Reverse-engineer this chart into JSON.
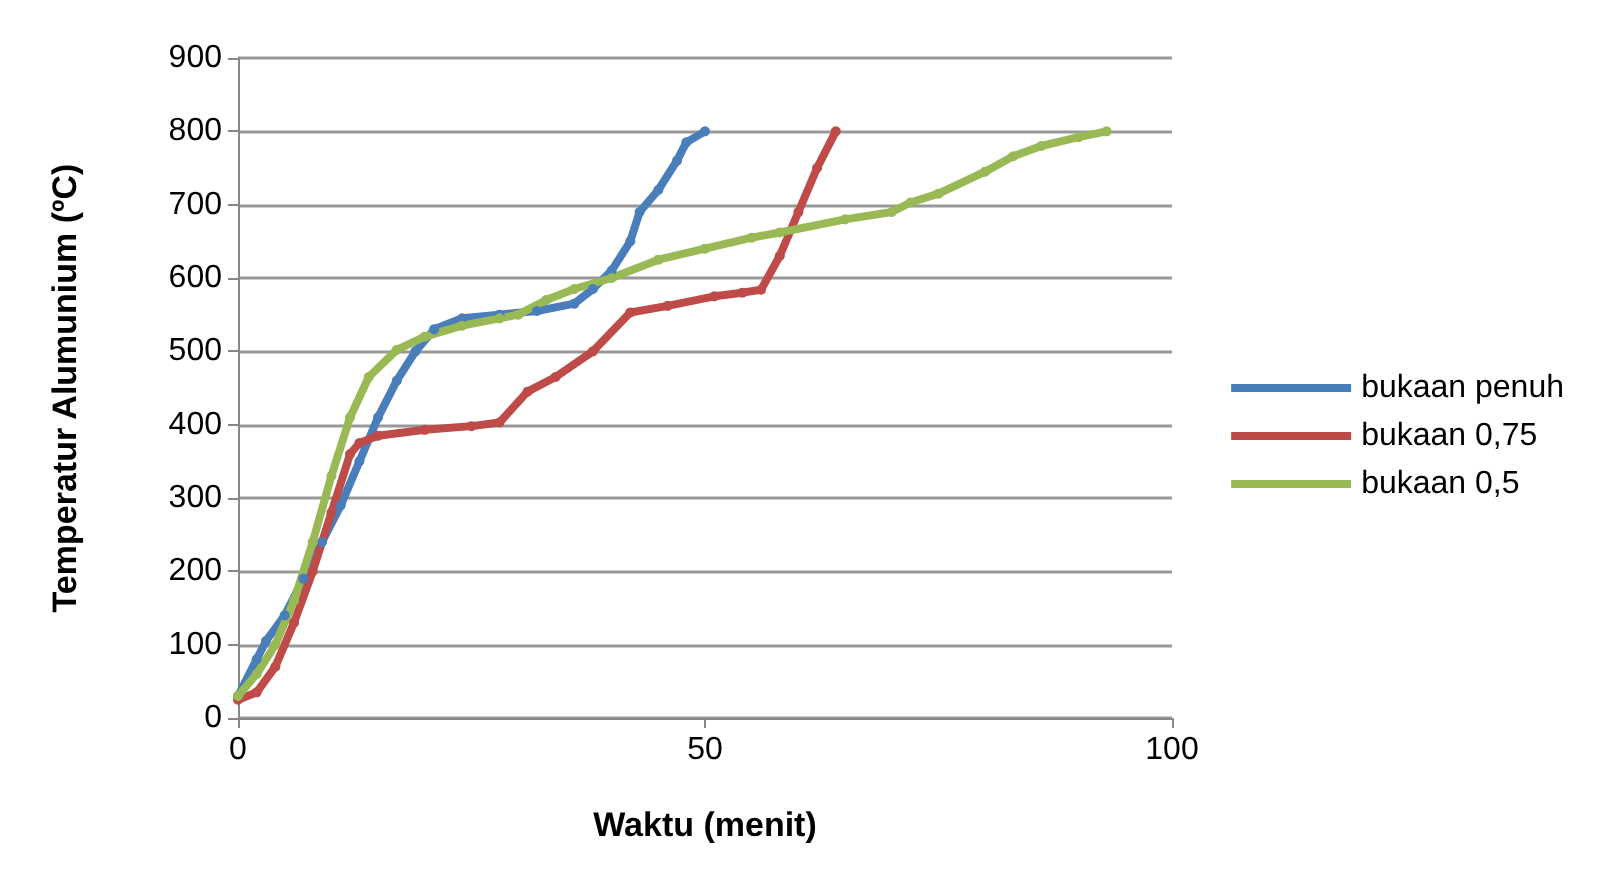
{
  "chart_data": {
    "type": "line",
    "xlabel": "Waktu (menit)",
    "ylabel": "Temperatur Alumunium (ºC)",
    "xlim": [
      0,
      100
    ],
    "xticks": [
      0,
      50,
      100
    ],
    "ylim": [
      0,
      900
    ],
    "yticks": [
      0,
      100,
      200,
      300,
      400,
      500,
      600,
      700,
      800,
      900
    ],
    "grid": "y",
    "legend": "right",
    "marker": "circle",
    "line_style": "solid",
    "series": [
      {
        "name": "bukaan penuh",
        "color": "#4a7ebb",
        "x": [
          0,
          2,
          3,
          5,
          7,
          9,
          11,
          13,
          15,
          17,
          19,
          21,
          24,
          28,
          32,
          36,
          38,
          40,
          42,
          43,
          45,
          47,
          48,
          50
        ],
        "values": [
          30,
          80,
          105,
          140,
          190,
          240,
          290,
          350,
          410,
          460,
          500,
          530,
          545,
          550,
          555,
          565,
          585,
          610,
          650,
          690,
          720,
          760,
          785,
          800
        ]
      },
      {
        "name": "bukaan 0,75",
        "color": "#be4b48",
        "x": [
          0,
          2,
          4,
          6,
          8,
          10,
          12,
          13,
          15,
          20,
          25,
          28,
          31,
          34,
          38,
          42,
          46,
          51,
          54,
          56,
          58,
          60,
          62,
          64
        ],
        "values": [
          25,
          35,
          70,
          130,
          200,
          280,
          360,
          375,
          385,
          393,
          398,
          403,
          445,
          465,
          500,
          553,
          562,
          575,
          580,
          584,
          630,
          690,
          750,
          800
        ]
      },
      {
        "name": "bukaan 0,5",
        "color": "#98b954",
        "x": [
          0,
          2,
          4,
          6,
          8,
          10,
          12,
          14,
          17,
          20,
          24,
          28,
          30,
          33,
          36,
          40,
          45,
          50,
          55,
          58,
          65,
          70,
          72,
          75,
          80,
          83,
          86,
          90,
          93
        ],
        "values": [
          30,
          60,
          100,
          160,
          240,
          330,
          410,
          465,
          502,
          520,
          535,
          545,
          550,
          570,
          585,
          600,
          625,
          640,
          655,
          662,
          680,
          690,
          703,
          715,
          745,
          766,
          780,
          792,
          800
        ]
      }
    ]
  }
}
